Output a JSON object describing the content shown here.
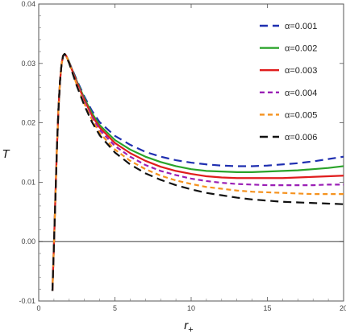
{
  "chart_data": {
    "type": "line",
    "title": "",
    "xlabel": "r",
    "xlabel_sub": "+",
    "ylabel": "T",
    "xlim": [
      0,
      20
    ],
    "ylim": [
      -0.01,
      0.04
    ],
    "xticks": [
      0,
      5,
      10,
      15,
      20
    ],
    "xtick_labels": [
      "0",
      "5",
      "10",
      "15",
      "20"
    ],
    "yticks": [
      -0.01,
      0.0,
      0.01,
      0.02,
      0.03,
      0.04
    ],
    "ytick_labels": [
      "-0.01",
      "0.00",
      "0.01",
      "0.02",
      "0.03",
      "0.04"
    ],
    "grid": false,
    "reference_line_y": 0,
    "legend_position": "top-right",
    "x": [
      0.9,
      1.0,
      1.1,
      1.2,
      1.3,
      1.4,
      1.5,
      1.6,
      1.7,
      1.8,
      1.9,
      2.0,
      2.2,
      2.5,
      3,
      3.5,
      4,
      5,
      6,
      7,
      8,
      9,
      10,
      11,
      12,
      13,
      14,
      15,
      16,
      17,
      18,
      19,
      20
    ],
    "series": [
      {
        "name": "α=0.001",
        "color": "#1f2fb0",
        "dash": "10,6",
        "values": [
          -0.0083,
          -0.0005,
          0.0079,
          0.0162,
          0.0225,
          0.0271,
          0.0299,
          0.0313,
          0.0316,
          0.0313,
          0.0308,
          0.0302,
          0.029,
          0.0272,
          0.0244,
          0.022,
          0.0201,
          0.0178,
          0.0163,
          0.0151,
          0.0143,
          0.0137,
          0.0133,
          0.013,
          0.0128,
          0.0127,
          0.0127,
          0.0128,
          0.013,
          0.0132,
          0.0135,
          0.0139,
          0.0143
        ]
      },
      {
        "name": "α=0.002",
        "color": "#2aa32a",
        "dash": "",
        "values": [
          -0.0083,
          -0.0005,
          0.0079,
          0.0162,
          0.0225,
          0.0271,
          0.0299,
          0.0313,
          0.0316,
          0.0313,
          0.0308,
          0.0302,
          0.0289,
          0.027,
          0.0241,
          0.0216,
          0.0196,
          0.0171,
          0.0155,
          0.0143,
          0.0134,
          0.0127,
          0.0122,
          0.0119,
          0.0118,
          0.0117,
          0.0117,
          0.0118,
          0.0119,
          0.012,
          0.0122,
          0.0124,
          0.0127
        ]
      },
      {
        "name": "α=0.003",
        "color": "#e01c1c",
        "dash": "",
        "values": [
          -0.0083,
          -0.0005,
          0.0079,
          0.0162,
          0.0225,
          0.0271,
          0.0299,
          0.0313,
          0.0316,
          0.0313,
          0.0307,
          0.0301,
          0.0288,
          0.0268,
          0.0238,
          0.0212,
          0.0192,
          0.0166,
          0.0149,
          0.0136,
          0.0126,
          0.0119,
          0.0114,
          0.011,
          0.0108,
          0.0107,
          0.0107,
          0.0107,
          0.0107,
          0.0108,
          0.0109,
          0.011,
          0.0111
        ]
      },
      {
        "name": "α=0.004",
        "color": "#9a1fb5",
        "dash": "6,4",
        "values": [
          -0.0083,
          -0.0005,
          0.0079,
          0.0162,
          0.0225,
          0.0271,
          0.0299,
          0.0313,
          0.0316,
          0.0312,
          0.0307,
          0.0301,
          0.0287,
          0.0266,
          0.0235,
          0.0209,
          0.0188,
          0.0161,
          0.0143,
          0.0129,
          0.0119,
          0.0112,
          0.0106,
          0.0102,
          0.0099,
          0.0097,
          0.0096,
          0.0095,
          0.0095,
          0.0095,
          0.0095,
          0.0096,
          0.0096
        ]
      },
      {
        "name": "α=0.005",
        "color": "#f5921e",
        "dash": "6,4",
        "values": [
          -0.0083,
          -0.0005,
          0.0079,
          0.0162,
          0.0225,
          0.0271,
          0.0299,
          0.0313,
          0.0316,
          0.0312,
          0.0307,
          0.03,
          0.0286,
          0.0264,
          0.0232,
          0.0205,
          0.0183,
          0.0155,
          0.0136,
          0.0122,
          0.0111,
          0.0103,
          0.0097,
          0.0092,
          0.0089,
          0.0086,
          0.0084,
          0.0083,
          0.0082,
          0.0081,
          0.008,
          0.008,
          0.008
        ]
      },
      {
        "name": "α=0.006",
        "color": "#111111",
        "dash": "10,6",
        "values": [
          -0.0083,
          -0.0005,
          0.0079,
          0.0162,
          0.0225,
          0.0271,
          0.0299,
          0.0313,
          0.0316,
          0.0312,
          0.0306,
          0.03,
          0.0285,
          0.0262,
          0.0229,
          0.0201,
          0.0179,
          0.015,
          0.013,
          0.0115,
          0.0104,
          0.0095,
          0.0088,
          0.0082,
          0.0078,
          0.0074,
          0.0071,
          0.0069,
          0.0067,
          0.0066,
          0.0065,
          0.0064,
          0.0063
        ]
      }
    ]
  }
}
